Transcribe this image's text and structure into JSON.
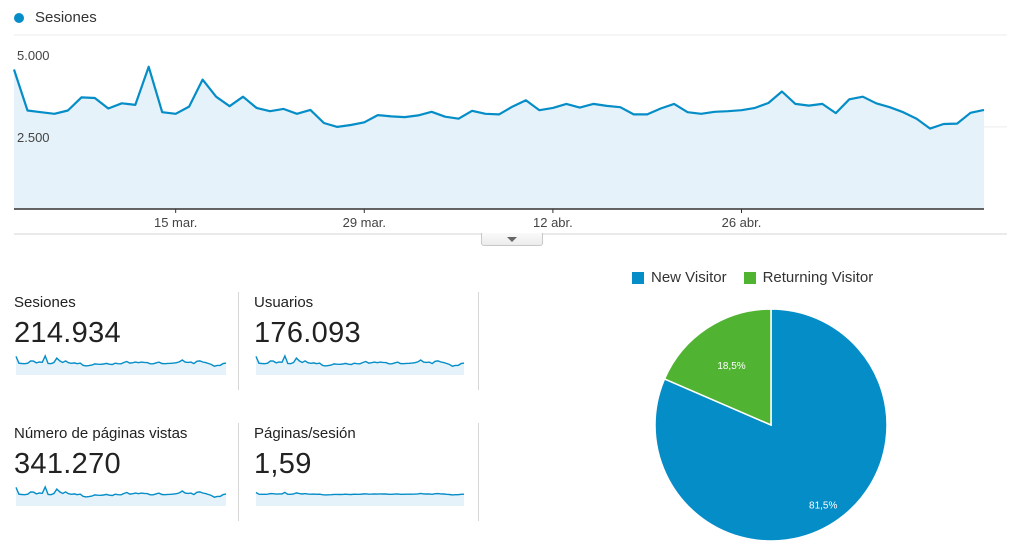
{
  "main_chart": {
    "legend_label": "Sesiones",
    "color": "#058dc7",
    "fill_color": "#e6f2f9",
    "y_tick_labels": [
      "5.000",
      "2.500"
    ],
    "x_tick_labels": [
      "15 mar.",
      "29 mar.",
      "12 abr.",
      "26 abr."
    ]
  },
  "metrics": [
    {
      "label": "Sesiones",
      "value": "214.934"
    },
    {
      "label": "Usuarios",
      "value": "176.093"
    },
    {
      "label": "Número de páginas vistas",
      "value": "341.270"
    },
    {
      "label": "Páginas/sesión",
      "value": "1,59"
    }
  ],
  "pie": {
    "legend": [
      {
        "label": "New Visitor",
        "color": "#058dc7"
      },
      {
        "label": "Returning Visitor",
        "color": "#50b432"
      }
    ],
    "slices": [
      {
        "label": "81,5%",
        "value": 81.5,
        "color": "#058dc7"
      },
      {
        "label": "18,5%",
        "value": 18.5,
        "color": "#50b432"
      }
    ]
  },
  "chart_data": [
    {
      "type": "area",
      "series": [
        {
          "name": "Sesiones",
          "values": [
            4250,
            3000,
            2950,
            2900,
            3000,
            3400,
            3380,
            3060,
            3220,
            3170,
            4330,
            2950,
            2900,
            3120,
            3940,
            3420,
            3130,
            3420,
            3080,
            2980,
            3050,
            2900,
            3020,
            2620,
            2500,
            2560,
            2640,
            2860,
            2820,
            2800,
            2850,
            2960,
            2810,
            2750,
            2990,
            2900,
            2880,
            3120,
            3310,
            3010,
            3080,
            3200,
            3090,
            3200,
            3140,
            3100,
            2880,
            2880,
            3060,
            3200,
            2950,
            2900,
            2960,
            2980,
            3010,
            3080,
            3230,
            3580,
            3200,
            3150,
            3200,
            2920,
            3340,
            3420,
            3220,
            3100,
            2950,
            2750,
            2450,
            2590,
            2600,
            2930,
            3020
          ]
        }
      ],
      "yticks": [
        2500,
        5000
      ],
      "ylim": [
        0,
        5300
      ],
      "x_tick_labels": [
        "15 mar.",
        "29 mar.",
        "12 abr.",
        "26 abr."
      ]
    },
    {
      "type": "pie",
      "categories": [
        "New Visitor",
        "Returning Visitor"
      ],
      "values": [
        81.5,
        18.5
      ]
    }
  ]
}
